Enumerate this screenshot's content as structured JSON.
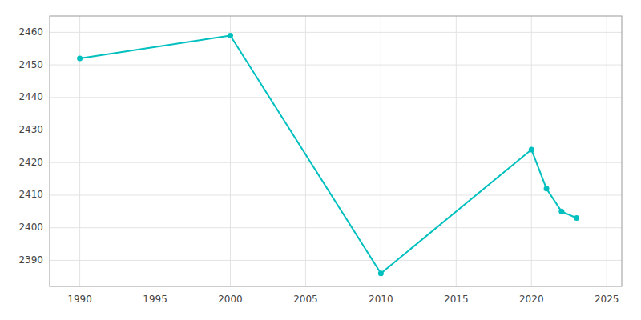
{
  "chart_data": {
    "type": "line",
    "x": [
      1990,
      2000,
      2010,
      2020,
      2021,
      2022,
      2023
    ],
    "values": [
      2452,
      2459,
      2386,
      2424,
      2412,
      2405,
      2403
    ],
    "color": "#00BFBF",
    "marker": "circle",
    "xlim": [
      1988,
      2026
    ],
    "ylim": [
      2382,
      2465
    ],
    "xticks": [
      1990,
      1995,
      2000,
      2005,
      2010,
      2015,
      2020,
      2025
    ],
    "yticks": [
      2390,
      2400,
      2410,
      2420,
      2430,
      2440,
      2450,
      2460
    ],
    "grid": true
  }
}
